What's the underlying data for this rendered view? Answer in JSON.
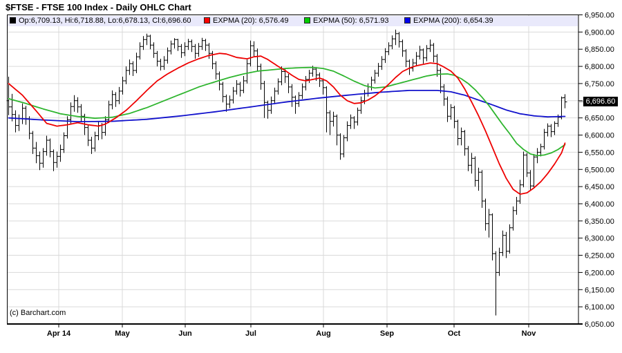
{
  "title": "$FTSE - FTSE 100 Index - Daily OHLC Chart",
  "copyright": "(c) Barchart.com",
  "legend": {
    "items": [
      {
        "swatch_color": "#000000",
        "label": "Op:6,709.13, Hi:6,718.88, Lo:6,678.13, Cl:6,696.60"
      },
      {
        "swatch_color": "#ff0000",
        "label": "EXPMA (20): 6,576.49"
      },
      {
        "swatch_color": "#00cc00",
        "label": "EXPMA (50): 6,571.93"
      },
      {
        "swatch_color": "#0000ee",
        "label": "EXPMA (200): 6,654.39"
      }
    ]
  },
  "last_price_label": "6,696.60",
  "chart_data": {
    "type": "ohlc",
    "title": "$FTSE - FTSE 100 Index - Daily OHLC Chart",
    "ylabel": "",
    "xlabel": "",
    "ylim": [
      6050,
      6950
    ],
    "ytick_interval": 50,
    "yticks": [
      6950,
      6900,
      6850,
      6800,
      6750,
      6700,
      6650,
      6600,
      6550,
      6500,
      6450,
      6400,
      6350,
      6300,
      6250,
      6200,
      6150,
      6100,
      6050
    ],
    "grid": true,
    "legend_position": "top",
    "last_close": 6696.6,
    "bar_spacing": 5,
    "xticks": [
      {
        "label": "Apr 14",
        "bar": 14.6
      },
      {
        "label": "May",
        "bar": 33.0
      },
      {
        "label": "Jun",
        "bar": 51.2
      },
      {
        "label": "Jul",
        "bar": 70.2
      },
      {
        "label": "Aug",
        "bar": 91.2
      },
      {
        "label": "Sep",
        "bar": 109.6
      },
      {
        "label": "Oct",
        "bar": 129.0
      },
      {
        "label": "Nov",
        "bar": 150.6
      }
    ],
    "series_legend": [
      "OHLC bars",
      "EXPMA (20)",
      "EXPMA (50)",
      "EXPMA (200)"
    ],
    "bars": [
      [
        6700,
        6770,
        6658,
        6682
      ],
      [
        6682,
        6720,
        6640,
        6660
      ],
      [
        6660,
        6672,
        6608,
        6628
      ],
      [
        6628,
        6660,
        6612,
        6648
      ],
      [
        6648,
        6692,
        6632,
        6678
      ],
      [
        6678,
        6685,
        6630,
        6648
      ],
      [
        6648,
        6655,
        6588,
        6605
      ],
      [
        6605,
        6612,
        6545,
        6562
      ],
      [
        6562,
        6580,
        6518,
        6540
      ],
      [
        6540,
        6552,
        6498,
        6518
      ],
      [
        6518,
        6562,
        6505,
        6552
      ],
      [
        6552,
        6598,
        6540,
        6585
      ],
      [
        6585,
        6590,
        6535,
        6552
      ],
      [
        6552,
        6558,
        6495,
        6520
      ],
      [
        6520,
        6552,
        6505,
        6538
      ],
      [
        6538,
        6572,
        6522,
        6558
      ],
      [
        6558,
        6608,
        6548,
        6598
      ],
      [
        6598,
        6655,
        6590,
        6645
      ],
      [
        6645,
        6695,
        6632,
        6683
      ],
      [
        6683,
        6716,
        6668,
        6700
      ],
      [
        6700,
        6710,
        6665,
        6682
      ],
      [
        6682,
        6690,
        6638,
        6655
      ],
      [
        6655,
        6662,
        6600,
        6622
      ],
      [
        6622,
        6630,
        6568,
        6585
      ],
      [
        6585,
        6595,
        6545,
        6562
      ],
      [
        6562,
        6610,
        6552,
        6598
      ],
      [
        6598,
        6640,
        6585,
        6628
      ],
      [
        6628,
        6635,
        6588,
        6608
      ],
      [
        6608,
        6655,
        6598,
        6645
      ],
      [
        6645,
        6700,
        6635,
        6688
      ],
      [
        6688,
        6730,
        6675,
        6718
      ],
      [
        6718,
        6725,
        6682,
        6700
      ],
      [
        6700,
        6740,
        6690,
        6728
      ],
      [
        6728,
        6770,
        6718,
        6758
      ],
      [
        6758,
        6800,
        6748,
        6788
      ],
      [
        6788,
        6820,
        6775,
        6808
      ],
      [
        6808,
        6815,
        6772,
        6788
      ],
      [
        6788,
        6840,
        6780,
        6828
      ],
      [
        6828,
        6870,
        6820,
        6858
      ],
      [
        6858,
        6888,
        6848,
        6878
      ],
      [
        6878,
        6895,
        6862,
        6888
      ],
      [
        6888,
        6892,
        6850,
        6862
      ],
      [
        6862,
        6870,
        6825,
        6838
      ],
      [
        6838,
        6845,
        6800,
        6815
      ],
      [
        6815,
        6822,
        6788,
        6800
      ],
      [
        6800,
        6830,
        6790,
        6818
      ],
      [
        6818,
        6855,
        6808,
        6845
      ],
      [
        6845,
        6875,
        6835,
        6865
      ],
      [
        6865,
        6882,
        6852,
        6878
      ],
      [
        6878,
        6880,
        6845,
        6858
      ],
      [
        6858,
        6865,
        6825,
        6840
      ],
      [
        6840,
        6870,
        6830,
        6858
      ],
      [
        6858,
        6880,
        6848,
        6872
      ],
      [
        6872,
        6878,
        6842,
        6858
      ],
      [
        6858,
        6865,
        6822,
        6838
      ],
      [
        6838,
        6868,
        6828,
        6858
      ],
      [
        6858,
        6883,
        6848,
        6875
      ],
      [
        6875,
        6880,
        6845,
        6862
      ],
      [
        6862,
        6868,
        6822,
        6838
      ],
      [
        6838,
        6845,
        6792,
        6808
      ],
      [
        6808,
        6815,
        6762,
        6778
      ],
      [
        6778,
        6785,
        6730,
        6748
      ],
      [
        6748,
        6755,
        6695,
        6712
      ],
      [
        6712,
        6718,
        6668,
        6690
      ],
      [
        6690,
        6715,
        6678,
        6702
      ],
      [
        6702,
        6740,
        6692,
        6728
      ],
      [
        6728,
        6760,
        6718,
        6748
      ],
      [
        6748,
        6755,
        6712,
        6730
      ],
      [
        6730,
        6772,
        6722,
        6758
      ],
      [
        6758,
        6820,
        6750,
        6808
      ],
      [
        6808,
        6875,
        6800,
        6860
      ],
      [
        6860,
        6873,
        6828,
        6845
      ],
      [
        6845,
        6852,
        6785,
        6800
      ],
      [
        6800,
        6808,
        6732,
        6750
      ],
      [
        6750,
        6758,
        6650,
        6695
      ],
      [
        6695,
        6700,
        6648,
        6672
      ],
      [
        6672,
        6712,
        6662,
        6700
      ],
      [
        6700,
        6738,
        6690,
        6728
      ],
      [
        6728,
        6765,
        6718,
        6755
      ],
      [
        6755,
        6800,
        6745,
        6785
      ],
      [
        6785,
        6792,
        6752,
        6770
      ],
      [
        6770,
        6778,
        6722,
        6740
      ],
      [
        6740,
        6748,
        6682,
        6710
      ],
      [
        6710,
        6715,
        6662,
        6692
      ],
      [
        6692,
        6725,
        6682,
        6715
      ],
      [
        6715,
        6750,
        6705,
        6740
      ],
      [
        6740,
        6772,
        6730,
        6762
      ],
      [
        6762,
        6790,
        6752,
        6780
      ],
      [
        6780,
        6802,
        6770,
        6792
      ],
      [
        6792,
        6798,
        6758,
        6775
      ],
      [
        6775,
        6782,
        6740,
        6758
      ],
      [
        6758,
        6765,
        6718,
        6738
      ],
      [
        6738,
        6742,
        6608,
        6665
      ],
      [
        6665,
        6672,
        6600,
        6640
      ],
      [
        6640,
        6668,
        6625,
        6655
      ],
      [
        6655,
        6660,
        6570,
        6600
      ],
      [
        6600,
        6605,
        6528,
        6545
      ],
      [
        6545,
        6600,
        6535,
        6592
      ],
      [
        6592,
        6640,
        6582,
        6628
      ],
      [
        6628,
        6660,
        6618,
        6650
      ],
      [
        6650,
        6655,
        6618,
        6638
      ],
      [
        6638,
        6680,
        6628,
        6672
      ],
      [
        6672,
        6712,
        6662,
        6700
      ],
      [
        6700,
        6732,
        6690,
        6722
      ],
      [
        6722,
        6750,
        6712,
        6740
      ],
      [
        6740,
        6770,
        6730,
        6760
      ],
      [
        6760,
        6790,
        6750,
        6780
      ],
      [
        6780,
        6810,
        6770,
        6800
      ],
      [
        6800,
        6830,
        6790,
        6820
      ],
      [
        6820,
        6853,
        6810,
        6843
      ],
      [
        6843,
        6870,
        6833,
        6860
      ],
      [
        6860,
        6890,
        6850,
        6880
      ],
      [
        6880,
        6907,
        6862,
        6895
      ],
      [
        6895,
        6900,
        6855,
        6872
      ],
      [
        6872,
        6878,
        6828,
        6845
      ],
      [
        6845,
        6850,
        6798,
        6815
      ],
      [
        6815,
        6820,
        6775,
        6795
      ],
      [
        6795,
        6822,
        6785,
        6810
      ],
      [
        6810,
        6842,
        6800,
        6830
      ],
      [
        6830,
        6860,
        6820,
        6848
      ],
      [
        6848,
        6852,
        6808,
        6825
      ],
      [
        6825,
        6862,
        6815,
        6852
      ],
      [
        6852,
        6878,
        6842,
        6862
      ],
      [
        6862,
        6868,
        6812,
        6830
      ],
      [
        6830,
        6836,
        6770,
        6788
      ],
      [
        6788,
        6795,
        6722,
        6740
      ],
      [
        6740,
        6748,
        6685,
        6705
      ],
      [
        6705,
        6712,
        6638,
        6655
      ],
      [
        6655,
        6690,
        6645,
        6680
      ],
      [
        6680,
        6685,
        6620,
        6640
      ],
      [
        6640,
        6645,
        6570,
        6590
      ],
      [
        6590,
        6622,
        6570,
        6610
      ],
      [
        6610,
        6615,
        6540,
        6560
      ],
      [
        6560,
        6568,
        6495,
        6512
      ],
      [
        6512,
        6548,
        6488,
        6532
      ],
      [
        6532,
        6538,
        6450,
        6468
      ],
      [
        6468,
        6505,
        6438,
        6492
      ],
      [
        6492,
        6498,
        6388,
        6408
      ],
      [
        6408,
        6415,
        6322,
        6342
      ],
      [
        6342,
        6385,
        6302,
        6368
      ],
      [
        6368,
        6372,
        6235,
        6255
      ],
      [
        6255,
        6262,
        6075,
        6200
      ],
      [
        6200,
        6272,
        6190,
        6258
      ],
      [
        6258,
        6322,
        6248,
        6308
      ],
      [
        6308,
        6318,
        6242,
        6262
      ],
      [
        6262,
        6340,
        6255,
        6330
      ],
      [
        6330,
        6392,
        6322,
        6380
      ],
      [
        6380,
        6420,
        6368,
        6408
      ],
      [
        6408,
        6470,
        6400,
        6455
      ],
      [
        6455,
        6552,
        6448,
        6542
      ],
      [
        6542,
        6548,
        6478,
        6490
      ],
      [
        6490,
        6498,
        6438,
        6452
      ],
      [
        6452,
        6545,
        6446,
        6536
      ],
      [
        6536,
        6562,
        6518,
        6550
      ],
      [
        6550,
        6575,
        6538,
        6566
      ],
      [
        6566,
        6618,
        6558,
        6608
      ],
      [
        6608,
        6634,
        6596,
        6626
      ],
      [
        6626,
        6632,
        6594,
        6610
      ],
      [
        6610,
        6640,
        6600,
        6634
      ],
      [
        6634,
        6660,
        6624,
        6652
      ],
      [
        6652,
        6712,
        6646,
        6708
      ],
      [
        6709.13,
        6718.88,
        6678.13,
        6696.6
      ]
    ],
    "ema20_anchors": [
      [
        0,
        6750
      ],
      [
        4,
        6716
      ],
      [
        8,
        6670
      ],
      [
        11,
        6634
      ],
      [
        14,
        6626
      ],
      [
        17,
        6630
      ],
      [
        20,
        6636
      ],
      [
        23,
        6630
      ],
      [
        26,
        6626
      ],
      [
        28,
        6632
      ],
      [
        31,
        6650
      ],
      [
        34,
        6672
      ],
      [
        37,
        6700
      ],
      [
        40,
        6730
      ],
      [
        43,
        6758
      ],
      [
        46,
        6778
      ],
      [
        49,
        6795
      ],
      [
        52,
        6810
      ],
      [
        55,
        6822
      ],
      [
        58,
        6832
      ],
      [
        61,
        6838
      ],
      [
        63,
        6836
      ],
      [
        66,
        6826
      ],
      [
        69,
        6822
      ],
      [
        71,
        6828
      ],
      [
        73,
        6830
      ],
      [
        75,
        6820
      ],
      [
        78,
        6800
      ],
      [
        80,
        6788
      ],
      [
        82,
        6774
      ],
      [
        84,
        6762
      ],
      [
        86,
        6758
      ],
      [
        88,
        6762
      ],
      [
        90,
        6766
      ],
      [
        92,
        6758
      ],
      [
        94,
        6740
      ],
      [
        96,
        6716
      ],
      [
        98,
        6700
      ],
      [
        100,
        6692
      ],
      [
        102,
        6694
      ],
      [
        104,
        6702
      ],
      [
        106,
        6714
      ],
      [
        108,
        6730
      ],
      [
        110,
        6748
      ],
      [
        112,
        6768
      ],
      [
        114,
        6785
      ],
      [
        116,
        6795
      ],
      [
        118,
        6802
      ],
      [
        120,
        6806
      ],
      [
        122,
        6810
      ],
      [
        124,
        6808
      ],
      [
        126,
        6798
      ],
      [
        128,
        6786
      ],
      [
        130,
        6766
      ],
      [
        132,
        6734
      ],
      [
        134,
        6696
      ],
      [
        136,
        6656
      ],
      [
        138,
        6612
      ],
      [
        140,
        6564
      ],
      [
        142,
        6516
      ],
      [
        144,
        6474
      ],
      [
        146,
        6442
      ],
      [
        148,
        6428
      ],
      [
        150,
        6432
      ],
      [
        152,
        6446
      ],
      [
        154,
        6464
      ],
      [
        156,
        6488
      ],
      [
        158,
        6516
      ],
      [
        160,
        6548
      ],
      [
        161,
        6576.49
      ]
    ],
    "ema50_anchors": [
      [
        0,
        6706
      ],
      [
        5,
        6692
      ],
      [
        10,
        6676
      ],
      [
        15,
        6662
      ],
      [
        20,
        6654
      ],
      [
        25,
        6649
      ],
      [
        30,
        6652
      ],
      [
        35,
        6663
      ],
      [
        40,
        6680
      ],
      [
        45,
        6700
      ],
      [
        50,
        6720
      ],
      [
        55,
        6740
      ],
      [
        60,
        6756
      ],
      [
        64,
        6768
      ],
      [
        68,
        6778
      ],
      [
        72,
        6786
      ],
      [
        76,
        6790
      ],
      [
        80,
        6794
      ],
      [
        84,
        6796
      ],
      [
        88,
        6797
      ],
      [
        91,
        6794
      ],
      [
        94,
        6786
      ],
      [
        97,
        6772
      ],
      [
        100,
        6757
      ],
      [
        103,
        6744
      ],
      [
        106,
        6737
      ],
      [
        109,
        6740
      ],
      [
        112,
        6748
      ],
      [
        115,
        6756
      ],
      [
        118,
        6764
      ],
      [
        121,
        6772
      ],
      [
        124,
        6777
      ],
      [
        127,
        6778
      ],
      [
        129,
        6774
      ],
      [
        131,
        6764
      ],
      [
        133,
        6750
      ],
      [
        135,
        6732
      ],
      [
        137,
        6710
      ],
      [
        139,
        6686
      ],
      [
        141,
        6658
      ],
      [
        143,
        6630
      ],
      [
        145,
        6604
      ],
      [
        147,
        6576
      ],
      [
        149,
        6558
      ],
      [
        151,
        6545
      ],
      [
        153,
        6540
      ],
      [
        155,
        6542
      ],
      [
        157,
        6548
      ],
      [
        159,
        6558
      ],
      [
        161,
        6571.93
      ]
    ],
    "ema200_anchors": [
      [
        0,
        6650
      ],
      [
        10,
        6644
      ],
      [
        20,
        6639
      ],
      [
        30,
        6640
      ],
      [
        40,
        6646
      ],
      [
        50,
        6656
      ],
      [
        60,
        6668
      ],
      [
        70,
        6682
      ],
      [
        80,
        6696
      ],
      [
        90,
        6708
      ],
      [
        100,
        6718
      ],
      [
        108,
        6725
      ],
      [
        116,
        6730
      ],
      [
        124,
        6730
      ],
      [
        128,
        6726
      ],
      [
        132,
        6716
      ],
      [
        136,
        6702
      ],
      [
        140,
        6688
      ],
      [
        144,
        6673
      ],
      [
        148,
        6662
      ],
      [
        152,
        6656
      ],
      [
        156,
        6653
      ],
      [
        161,
        6654.39
      ]
    ],
    "colors": {
      "bar": "#000000",
      "ema20": "#ee0000",
      "ema50": "#2eb52e",
      "ema200": "#1111cc",
      "grid": "#d9d9d9",
      "axis": "#000000",
      "legend_bg": "#e9e9fb",
      "price_box_bg": "#000000",
      "price_box_text": "#ffffff"
    }
  }
}
